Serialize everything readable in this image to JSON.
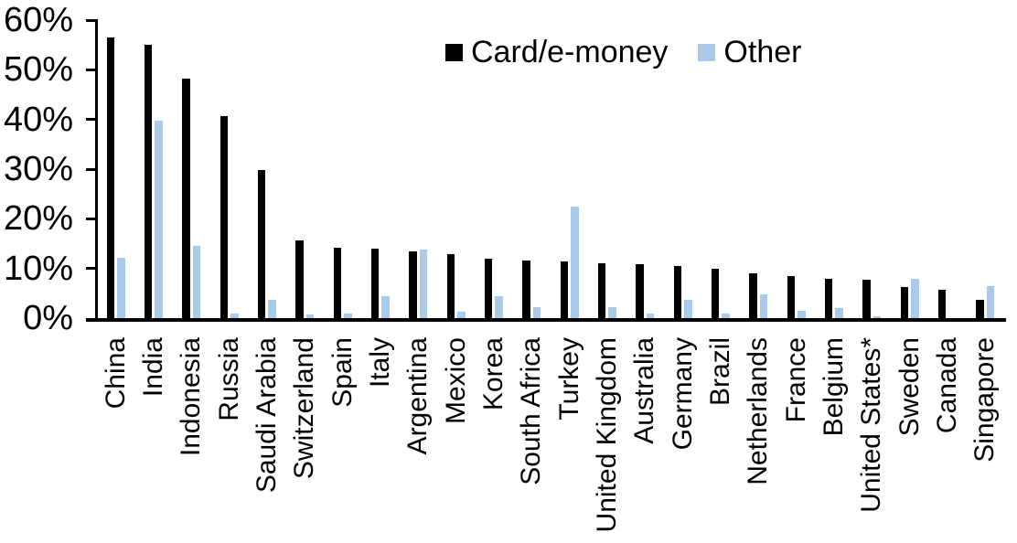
{
  "chart_data": {
    "type": "bar",
    "title": "",
    "xlabel": "",
    "ylabel": "",
    "ylim": [
      0,
      60
    ],
    "y_tick_labels_top_to_bottom": [
      "60%",
      "50%",
      "40%",
      "30%",
      "20%",
      "10%",
      "0%"
    ],
    "grid": false,
    "legend_position": "top-center",
    "categories": [
      "China",
      "India",
      "Indonesia",
      "Russia",
      "Saudi Arabia",
      "Switzerland",
      "Spain",
      "Italy",
      "Argentina",
      "Mexico",
      "Korea",
      "South Africa",
      "Turkey",
      "United Kingdom",
      "Australia",
      "Germany",
      "Brazil",
      "Netherlands",
      "France",
      "Belgium",
      "United States*",
      "Sweden",
      "Canada",
      "Singapore"
    ],
    "series": [
      {
        "name": "Card/e-money",
        "color": "#000000",
        "values": [
          56.5,
          55.1,
          48.2,
          40.6,
          29.9,
          15.6,
          14.1,
          13.9,
          13.4,
          12.8,
          12.0,
          11.6,
          11.5,
          11.0,
          10.8,
          10.5,
          9.9,
          9.1,
          8.5,
          7.9,
          7.7,
          6.2,
          5.7,
          3.6
        ]
      },
      {
        "name": "Other",
        "color": "#A9CBE9",
        "values": [
          12.2,
          39.8,
          14.5,
          1.0,
          3.7,
          0.7,
          0.9,
          4.4,
          13.8,
          1.2,
          4.5,
          2.3,
          22.4,
          2.3,
          0.9,
          3.7,
          1.0,
          4.7,
          1.4,
          2.0,
          0.4,
          7.9,
          0.0,
          6.4
        ]
      }
    ]
  }
}
